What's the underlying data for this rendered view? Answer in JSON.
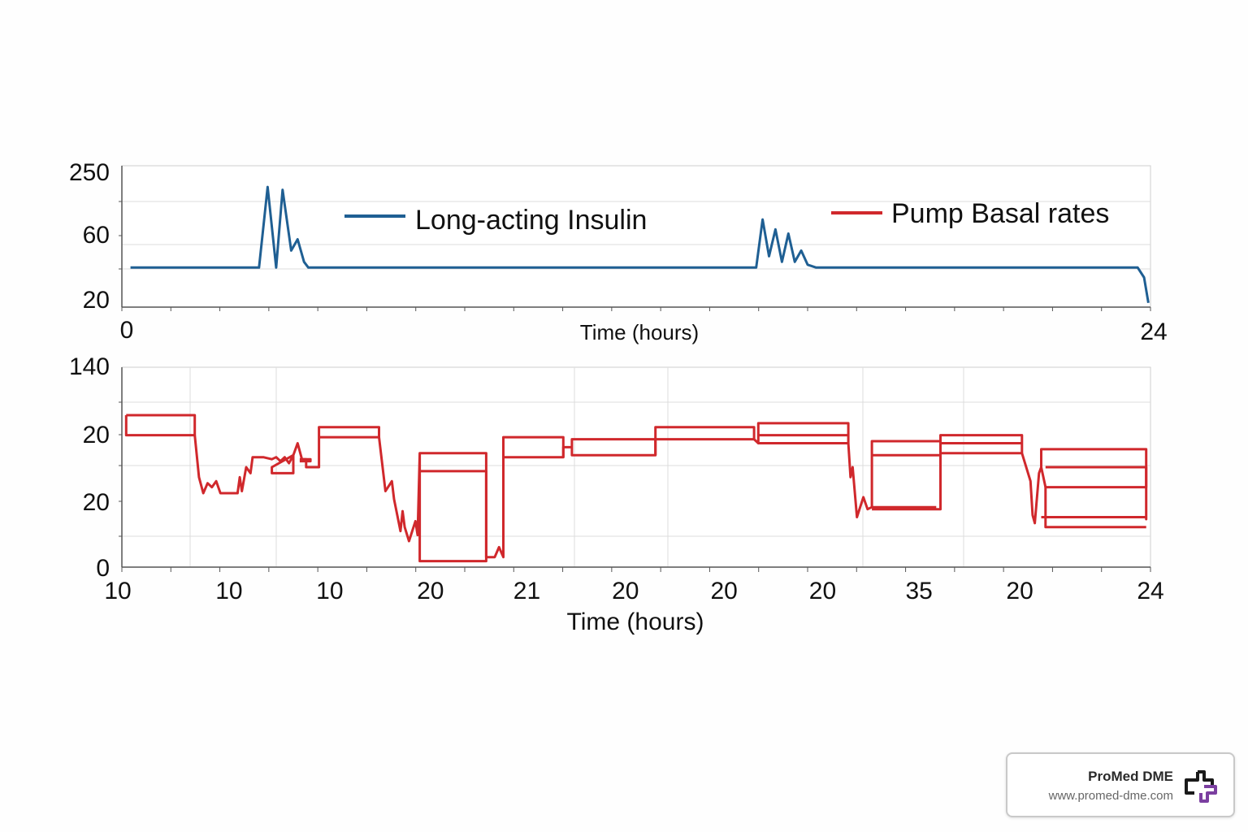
{
  "colors": {
    "insulin": "#1f5f93",
    "pump": "#d0282c",
    "grid": "#dcdcdc",
    "axis": "#555555",
    "text": "#111111",
    "logo_dark": "#1a1a1a",
    "logo_purple": "#7b3fa0"
  },
  "chart_data": [
    {
      "type": "line",
      "title": "",
      "xlabel": "Time (hours)",
      "ylabel": "",
      "xlim": [
        0,
        24
      ],
      "x_tick_labels": [
        {
          "x": 0,
          "label": "0"
        },
        {
          "x": 24,
          "label": "24"
        }
      ],
      "y_tick_labels": [
        "250",
        "60",
        "20"
      ],
      "grid": true,
      "legend": {
        "placement": "top",
        "entries": [
          "Long-acting Insulin",
          "Pump Basal rates"
        ]
      },
      "series": [
        {
          "name": "Long-acting Insulin",
          "color": "#1f5f93",
          "points": [
            [
              0.2,
              0.28
            ],
            [
              3.2,
              0.28
            ],
            [
              3.4,
              0.85
            ],
            [
              3.6,
              0.28
            ],
            [
              3.75,
              0.83
            ],
            [
              3.95,
              0.4
            ],
            [
              4.1,
              0.48
            ],
            [
              4.25,
              0.32
            ],
            [
              4.35,
              0.28
            ],
            [
              14.8,
              0.28
            ],
            [
              14.95,
              0.62
            ],
            [
              15.1,
              0.36
            ],
            [
              15.25,
              0.55
            ],
            [
              15.4,
              0.32
            ],
            [
              15.55,
              0.52
            ],
            [
              15.7,
              0.32
            ],
            [
              15.85,
              0.4
            ],
            [
              16.0,
              0.3
            ],
            [
              16.2,
              0.28
            ],
            [
              23.7,
              0.28
            ],
            [
              23.85,
              0.21
            ],
            [
              23.95,
              0.03
            ]
          ]
        },
        {
          "name": "Pump Basal rates",
          "color": "#d0282c",
          "points": []
        }
      ]
    },
    {
      "type": "line",
      "title": "",
      "xlabel": "Time (hours)",
      "ylabel": "",
      "xlim": [
        0,
        24
      ],
      "x_tick_labels": [
        {
          "x": 0,
          "label": "10"
        },
        {
          "x": 2.5,
          "label": "10"
        },
        {
          "x": 4.85,
          "label": "10"
        },
        {
          "x": 7.2,
          "label": "20"
        },
        {
          "x": 9.45,
          "label": "21"
        },
        {
          "x": 11.75,
          "label": "20"
        },
        {
          "x": 14.05,
          "label": "20"
        },
        {
          "x": 16.35,
          "label": "20"
        },
        {
          "x": 18.6,
          "label": "35"
        },
        {
          "x": 20.95,
          "label": "20"
        },
        {
          "x": 24,
          "label": "24"
        }
      ],
      "y_tick_labels": [
        "140",
        "20",
        "20",
        "0"
      ],
      "grid": true,
      "series": [
        {
          "name": "Pump Basal rates",
          "color": "#d0282c",
          "segments": [
            [
              [
                0.1,
                0.76
              ],
              [
                0.1,
                0.66
              ],
              [
                1.7,
                0.66
              ],
              [
                1.7,
                0.76
              ],
              [
                0.1,
                0.76
              ]
            ],
            [
              [
                1.7,
                0.66
              ],
              [
                1.8,
                0.45
              ],
              [
                1.9,
                0.37
              ],
              [
                2.0,
                0.42
              ],
              [
                2.1,
                0.4
              ],
              [
                2.2,
                0.43
              ],
              [
                2.3,
                0.37
              ],
              [
                2.4,
                0.37
              ],
              [
                2.7,
                0.37
              ],
              [
                2.75,
                0.45
              ],
              [
                2.8,
                0.38
              ],
              [
                2.9,
                0.5
              ],
              [
                3.0,
                0.47
              ],
              [
                3.05,
                0.55
              ],
              [
                3.3,
                0.55
              ],
              [
                3.5,
                0.54
              ],
              [
                3.6,
                0.55
              ],
              [
                3.7,
                0.53
              ],
              [
                3.8,
                0.55
              ],
              [
                3.9,
                0.52
              ],
              [
                4.0,
                0.56
              ],
              [
                3.5,
                0.5
              ],
              [
                3.5,
                0.47
              ],
              [
                4.0,
                0.47
              ],
              [
                4.0,
                0.56
              ],
              [
                4.1,
                0.62
              ],
              [
                4.2,
                0.54
              ],
              [
                4.4,
                0.54
              ],
              [
                4.4,
                0.53
              ],
              [
                4.15,
                0.53
              ]
            ],
            [
              [
                4.15,
                0.54
              ],
              [
                4.3,
                0.54
              ],
              [
                4.3,
                0.5
              ],
              [
                4.6,
                0.5
              ],
              [
                4.6,
                0.54
              ],
              [
                4.6,
                0.65
              ],
              [
                6.0,
                0.65
              ],
              [
                6.0,
                0.7
              ],
              [
                4.6,
                0.7
              ],
              [
                4.6,
                0.65
              ]
            ],
            [
              [
                6.0,
                0.7
              ],
              [
                6.0,
                0.65
              ],
              [
                6.15,
                0.38
              ],
              [
                6.3,
                0.43
              ],
              [
                6.35,
                0.34
              ],
              [
                6.5,
                0.18
              ],
              [
                6.55,
                0.28
              ],
              [
                6.6,
                0.2
              ],
              [
                6.7,
                0.13
              ],
              [
                6.85,
                0.23
              ],
              [
                6.9,
                0.16
              ],
              [
                6.95,
                0.57
              ],
              [
                8.5,
                0.57
              ],
              [
                8.5,
                0.03
              ],
              [
                6.95,
                0.03
              ],
              [
                6.95,
                0.57
              ]
            ],
            [
              [
                6.95,
                0.48
              ],
              [
                8.5,
                0.48
              ],
              [
                8.5,
                0.05
              ],
              [
                8.7,
                0.05
              ],
              [
                8.8,
                0.1
              ],
              [
                8.9,
                0.05
              ],
              [
                8.9,
                0.65
              ],
              [
                10.3,
                0.65
              ],
              [
                10.3,
                0.55
              ],
              [
                8.9,
                0.55
              ]
            ],
            [
              [
                10.3,
                0.55
              ],
              [
                10.3,
                0.6
              ],
              [
                10.5,
                0.6
              ],
              [
                10.5,
                0.56
              ],
              [
                12.45,
                0.56
              ],
              [
                12.45,
                0.64
              ],
              [
                10.5,
                0.64
              ],
              [
                10.5,
                0.6
              ]
            ],
            [
              [
                12.45,
                0.56
              ],
              [
                12.45,
                0.64
              ],
              [
                12.45,
                0.7
              ],
              [
                14.75,
                0.7
              ],
              [
                14.75,
                0.64
              ],
              [
                12.45,
                0.64
              ]
            ],
            [
              [
                14.75,
                0.64
              ],
              [
                14.85,
                0.62
              ],
              [
                14.85,
                0.72
              ],
              [
                16.95,
                0.72
              ],
              [
                16.95,
                0.62
              ],
              [
                14.85,
                0.62
              ],
              [
                14.85,
                0.66
              ],
              [
                16.95,
                0.66
              ]
            ],
            [
              [
                16.95,
                0.62
              ],
              [
                17.0,
                0.45
              ],
              [
                17.05,
                0.5
              ],
              [
                17.15,
                0.25
              ],
              [
                17.3,
                0.35
              ],
              [
                17.4,
                0.29
              ],
              [
                17.5,
                0.3
              ],
              [
                17.5,
                0.63
              ],
              [
                19.1,
                0.63
              ],
              [
                19.1,
                0.56
              ],
              [
                17.5,
                0.56
              ],
              [
                17.5,
                0.3
              ],
              [
                19.0,
                0.3
              ],
              [
                19.0,
                0.3
              ]
            ],
            [
              [
                17.5,
                0.29
              ],
              [
                19.1,
                0.29
              ],
              [
                19.1,
                0.66
              ],
              [
                21.0,
                0.66
              ],
              [
                21.0,
                0.57
              ],
              [
                19.1,
                0.57
              ],
              [
                19.1,
                0.62
              ],
              [
                21.0,
                0.62
              ]
            ],
            [
              [
                21.0,
                0.57
              ],
              [
                21.2,
                0.43
              ],
              [
                21.25,
                0.26
              ],
              [
                21.3,
                0.22
              ],
              [
                21.4,
                0.47
              ],
              [
                21.45,
                0.5
              ],
              [
                21.45,
                0.59
              ],
              [
                23.9,
                0.59
              ],
              [
                23.9,
                0.24
              ],
              [
                23.9,
                0.25
              ],
              [
                21.45,
                0.25
              ]
            ],
            [
              [
                21.45,
                0.5
              ],
              [
                21.55,
                0.4
              ],
              [
                23.9,
                0.4
              ],
              [
                23.9,
                0.5
              ],
              [
                21.55,
                0.5
              ]
            ],
            [
              [
                21.55,
                0.4
              ],
              [
                21.55,
                0.2
              ],
              [
                23.9,
                0.2
              ]
            ]
          ]
        }
      ]
    }
  ],
  "brand": {
    "name": "ProMed DME",
    "url": "www.promed-dme.com",
    "logo_icon": "cross-bracket-logo-icon"
  }
}
